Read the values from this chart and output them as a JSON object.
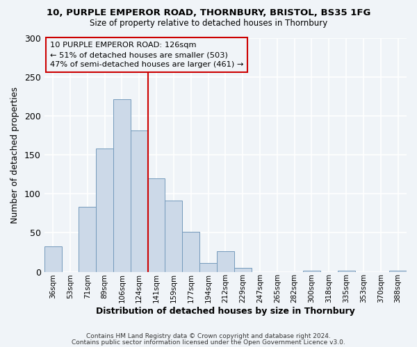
{
  "title": "10, PURPLE EMPEROR ROAD, THORNBURY, BRISTOL, BS35 1FG",
  "subtitle": "Size of property relative to detached houses in Thornbury",
  "xlabel": "Distribution of detached houses by size in Thornbury",
  "ylabel": "Number of detached properties",
  "bar_labels": [
    "36sqm",
    "53sqm",
    "71sqm",
    "89sqm",
    "106sqm",
    "124sqm",
    "141sqm",
    "159sqm",
    "177sqm",
    "194sqm",
    "212sqm",
    "229sqm",
    "247sqm",
    "265sqm",
    "282sqm",
    "300sqm",
    "318sqm",
    "335sqm",
    "353sqm",
    "370sqm",
    "388sqm"
  ],
  "bar_values": [
    33,
    0,
    83,
    158,
    222,
    181,
    120,
    91,
    51,
    11,
    26,
    5,
    0,
    0,
    0,
    1,
    0,
    1,
    0,
    0,
    1
  ],
  "bar_color": "#ccd9e8",
  "bar_edge_color": "#7399bb",
  "bg_color": "#f0f4f8",
  "plot_bg_color": "#f0f4f8",
  "grid_color": "#ffffff",
  "vline_x": 6,
  "vline_color": "#cc0000",
  "annotation_title": "10 PURPLE EMPEROR ROAD: 126sqm",
  "annotation_line1": "← 51% of detached houses are smaller (503)",
  "annotation_line2": "47% of semi-detached houses are larger (461) →",
  "annotation_box_color": "#cc0000",
  "ylim": [
    0,
    300
  ],
  "yticks": [
    0,
    50,
    100,
    150,
    200,
    250,
    300
  ],
  "footer1": "Contains HM Land Registry data © Crown copyright and database right 2024.",
  "footer2": "Contains public sector information licensed under the Open Government Licence v3.0."
}
